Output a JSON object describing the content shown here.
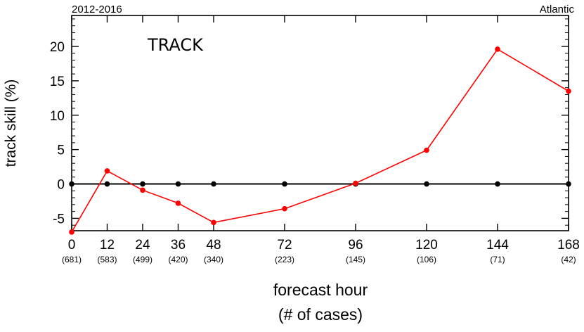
{
  "chart_data": {
    "type": "line",
    "title": "TRACK",
    "top_left": "2012-2016",
    "top_right": "Atlantic",
    "xlabel": "forecast hour",
    "xlabel_sub": "(# of cases)",
    "ylabel": "track skill (%)",
    "xlim": [
      0,
      168
    ],
    "ylim": [
      -6.8,
      24.5
    ],
    "x": [
      0,
      12,
      24,
      36,
      48,
      72,
      96,
      120,
      144,
      168
    ],
    "tick_labels": [
      "0",
      "12",
      "24",
      "36",
      "48",
      "72",
      "96",
      "120",
      "144",
      "168"
    ],
    "cases": [
      "(681)",
      "(583)",
      "(499)",
      "(420)",
      "(340)",
      "(223)",
      "(145)",
      "(106)",
      "(71)",
      "(42)"
    ],
    "yticks": [
      -5,
      0,
      5,
      10,
      15,
      20
    ],
    "ytick_labels": [
      "-5",
      "0",
      "5",
      "10",
      "15",
      "20"
    ],
    "series": [
      {
        "name": "",
        "color": "#ff0000",
        "values": [
          -7.0,
          1.9,
          -0.9,
          -2.8,
          -5.6,
          -3.6,
          0.1,
          4.9,
          19.6,
          13.5
        ]
      },
      {
        "name": "",
        "color": "#000000",
        "values": [
          0,
          0,
          0,
          0,
          0,
          0,
          0,
          0,
          0,
          0
        ]
      }
    ],
    "grid": false
  }
}
